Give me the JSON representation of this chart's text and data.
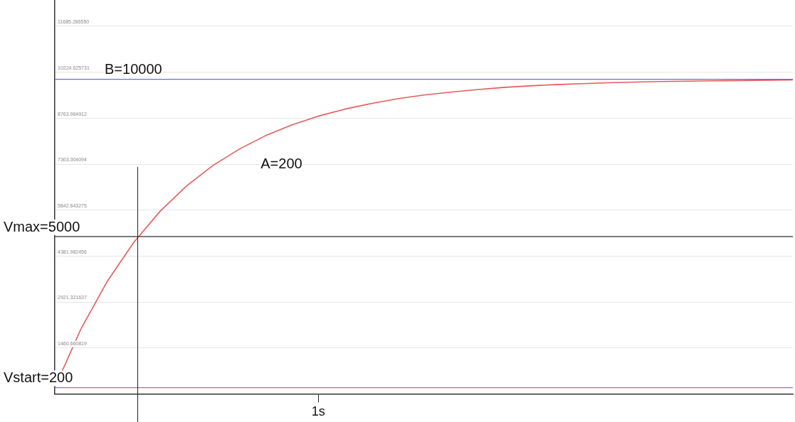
{
  "chart_data": {
    "type": "line",
    "categories": [
      null,
      null,
      null,
      null,
      null,
      null,
      null,
      null,
      null,
      null,
      "1s",
      null,
      null,
      null,
      null,
      null,
      null,
      null,
      null,
      null,
      null,
      null,
      null,
      null,
      null,
      null,
      null,
      null,
      null
    ],
    "series": [
      {
        "name": "A=200",
        "color": "#e85a5a",
        "values": [
          200,
          2080,
          3590,
          4820,
          5810,
          6610,
          7260,
          7780,
          8210,
          8550,
          8830,
          9050,
          9230,
          9380,
          9500,
          9590,
          9670,
          9740,
          9790,
          9830,
          9860,
          9890,
          9910,
          9930,
          9940,
          9950,
          9960,
          9970,
          9980
        ]
      }
    ],
    "ylim": [
      0,
      12520
    ],
    "yticks": [
      {
        "value": 1460.660819,
        "label": "1460.660819"
      },
      {
        "value": 2921.321637,
        "label": "2921.321637"
      },
      {
        "value": 4381.982456,
        "label": "4381.982456"
      },
      {
        "value": 5842.643275,
        "label": "5842.643275"
      },
      {
        "value": 7303.304094,
        "label": "7303.304094"
      },
      {
        "value": 8763.964912,
        "label": "8763.964912"
      },
      {
        "value": 10224.625731,
        "label": "10224.625731"
      },
      {
        "value": 11685.28655,
        "label": "11685.286550"
      }
    ],
    "ref_lines": [
      {
        "axis": "y",
        "value": 10000,
        "label": "B=10000",
        "color": "#6a6ae8"
      },
      {
        "axis": "y",
        "value": 5000,
        "label": "Vmax=5000",
        "color": "#505050"
      },
      {
        "axis": "y",
        "value": 200,
        "label": "Vstart=200",
        "color": "#a46ab4"
      }
    ],
    "grid": "y",
    "marker": "none",
    "line_style": "solid",
    "legend": false
  }
}
